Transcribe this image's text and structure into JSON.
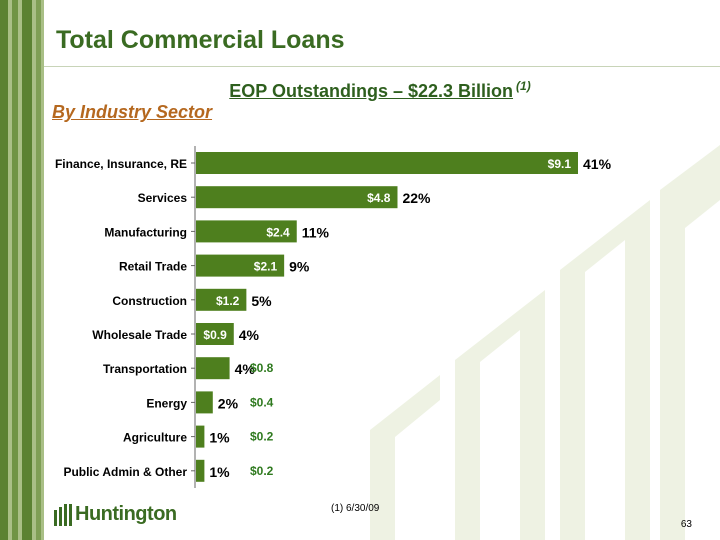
{
  "page": {
    "title": "Total Commercial Loans",
    "subtitle": "EOP Outstandings – $22.3 Billion",
    "subtitle_note": "(1)",
    "sector_label": "By Industry Sector",
    "footnote": "(1)   6/30/09",
    "page_number": "63",
    "logo_text": "Huntington"
  },
  "colors": {
    "bar": "#4e7f1e",
    "title": "#3a6b22",
    "sector_label": "#b5681f",
    "outside_value": "#2f7a1f",
    "stripe_dark": "#5b8232",
    "stripe_light": "#a9bf86"
  },
  "chart_data": {
    "type": "bar",
    "orientation": "horizontal",
    "categories": [
      "Finance, Insurance, RE",
      "Services",
      "Manufacturing",
      "Retail Trade",
      "Construction",
      "Wholesale Trade",
      "Transportation",
      "Energy",
      "Agriculture",
      "Public Admin & Other"
    ],
    "values": [
      9.1,
      4.8,
      2.4,
      2.1,
      1.2,
      0.9,
      0.8,
      0.4,
      0.2,
      0.2
    ],
    "value_labels": [
      "$9.1",
      "$4.8",
      "$2.4",
      "$2.1",
      "$1.2",
      "$0.9",
      "$0.8",
      "$0.4",
      "$0.2",
      "$0.2"
    ],
    "percent_labels": [
      "41%",
      "22%",
      "11%",
      "9%",
      "5%",
      "4%",
      "4%",
      "2%",
      "1%",
      "1%"
    ],
    "xlim": [
      0,
      9.1
    ],
    "grid": false,
    "legend": "none"
  }
}
